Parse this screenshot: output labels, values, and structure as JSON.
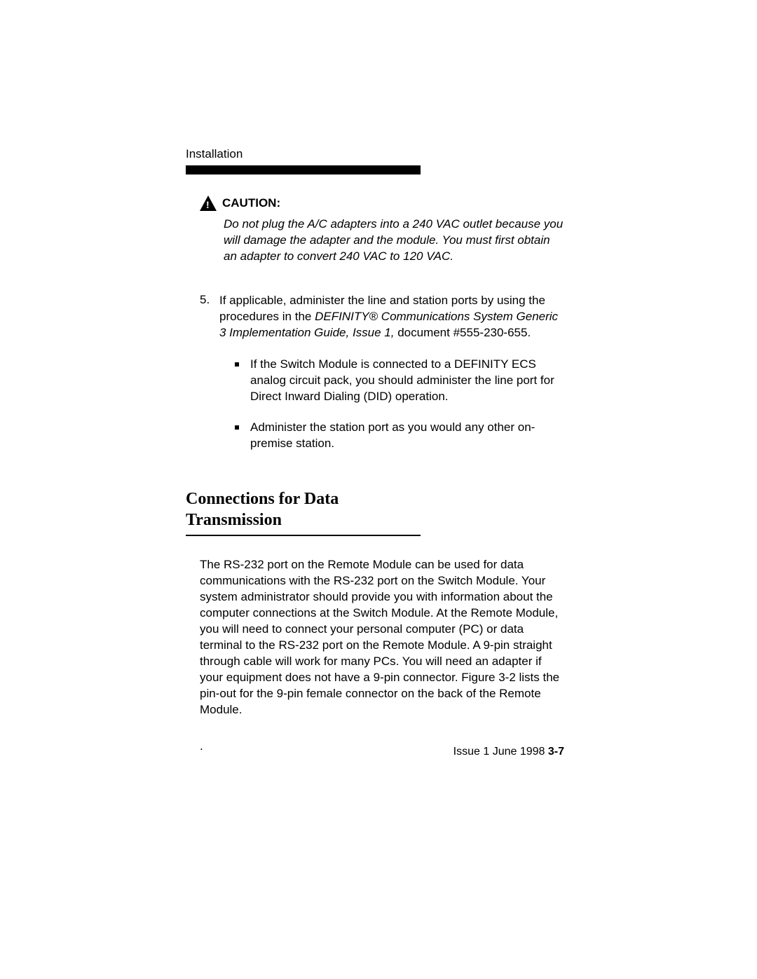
{
  "header": {
    "label": "Installation"
  },
  "caution": {
    "label": "CAUTION:",
    "text": "Do not plug the A/C adapters into a 240 VAC outlet because you will damage the adapter and the module. You must first obtain an adapter to convert 240 VAC to 120 VAC."
  },
  "step5": {
    "number": "5.",
    "text_before_italic": "If applicable, administer the line and station ports by using the procedures in the ",
    "italic_text": "DEFINITY® Communications System Generic 3 Implementation Guide, Issue 1,",
    "text_after_italic": " document #555-230-655.",
    "bullets": [
      "If the Switch Module is connected to a DEFINITY ECS analog circuit pack, you should administer the line port for Direct Inward Dialing (DID) operation.",
      "Administer the station port as you would any other on-premise station."
    ]
  },
  "section": {
    "heading_line1": "Connections for Data",
    "heading_line2": "Transmission",
    "body": "The RS-232 port on the Remote Module can be used for data communications with the RS-232 port on the Switch Module.  Your system administrator should provide you with information about the computer connections at the Switch Module. At the Remote Module, you will need to connect your personal computer (PC) or data terminal to the RS-232 port on the Remote Module. A 9-pin straight through cable will work for many PCs. You will need an adapter if your equipment does not have a 9-pin connector. Figure 3-2 lists the pin-out for the 9-pin female connector on the back of the Remote Module."
  },
  "lone_dot": ".",
  "footer": {
    "issue": "Issue 1   June 1998 ",
    "page": "3-7"
  },
  "colors": {
    "text": "#000000",
    "background": "#ffffff",
    "bar": "#000000"
  }
}
